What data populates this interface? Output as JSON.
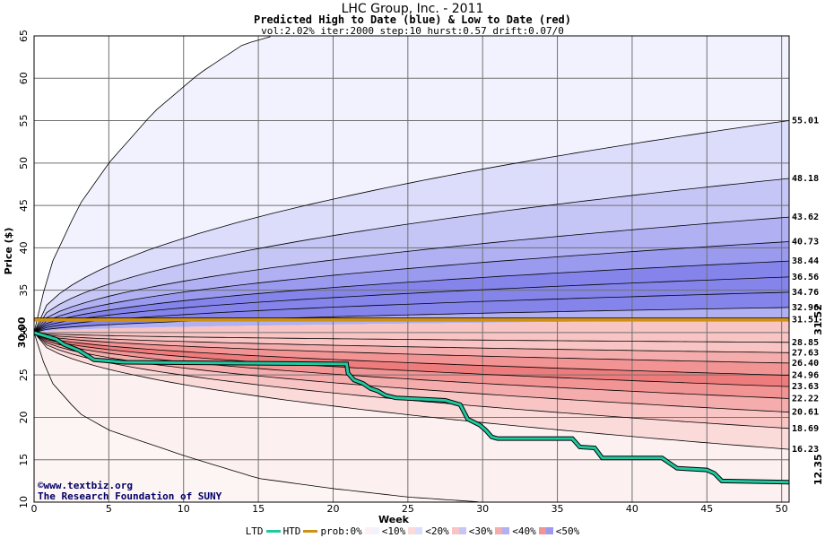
{
  "header": {
    "title": "LHC Group, Inc. - 2011",
    "subtitle": "Predicted High to Date (blue) &  Low to Date (red)",
    "params": "vol:2.02% iter:2000 step:10 hurst:0.57 drift:0.07/0"
  },
  "credits": {
    "site": "www.textbiz.org",
    "org": "The Research Foundation of SUNY"
  },
  "legend": {
    "ltd": "LTD",
    "htd": "HTD",
    "prob": "prob:0%",
    "items": [
      "<10%",
      "<20%",
      "<30%",
      "<40%",
      "<50%"
    ]
  },
  "colors": {
    "ltd_line": "#20c8a0",
    "price_line": "#d09010",
    "blue_bands": [
      "#f2f2ff",
      "#dcdcfb",
      "#c6c6f6",
      "#b0b0f2",
      "#9a9aee",
      "#8484ea"
    ],
    "red_bands": [
      "#fdf0f0",
      "#fbdada",
      "#f8c4c4",
      "#f5acac",
      "#f29494",
      "#ee7c7c"
    ]
  },
  "chart_data": {
    "type": "area",
    "title": "LHC Group, Inc. - 2011",
    "xlabel": "Week",
    "ylabel": "Price ($)",
    "xlim": [
      0,
      50.5
    ],
    "ylim": [
      10,
      65
    ],
    "x_ticks": [
      0,
      5,
      10,
      15,
      20,
      25,
      30,
      35,
      40,
      45,
      50
    ],
    "y_ticks": [
      10,
      15,
      20,
      25,
      30,
      35,
      40,
      45,
      50,
      55,
      60,
      65
    ],
    "grid": true,
    "start_price": 30.0,
    "start_label": "30.00",
    "current_price": 31.52,
    "current_label": "31.52",
    "last_ltd": 12.35,
    "last_ltd_label": "12.35",
    "outer_high_curve": {
      "x": [
        0,
        1,
        3,
        5,
        8,
        11,
        14,
        16
      ],
      "y": [
        30,
        37.5,
        45,
        50,
        56,
        60.5,
        64,
        65
      ]
    },
    "outer_low_curve": {
      "x": [
        0,
        1,
        3,
        5,
        10,
        15,
        20,
        25,
        30
      ],
      "y": [
        30,
        24.5,
        20.5,
        18.5,
        15.5,
        12.8,
        11.6,
        10.6,
        10
      ]
    },
    "high_levels": [
      {
        "label": "55.01",
        "end": 55.01
      },
      {
        "label": "48.18",
        "end": 48.18
      },
      {
        "label": "43.62",
        "end": 43.62
      },
      {
        "label": "40.73",
        "end": 40.73
      },
      {
        "label": "38.44",
        "end": 38.44
      },
      {
        "label": "36.56",
        "end": 36.56
      },
      {
        "label": "34.76",
        "end": 34.76
      },
      {
        "label": "32.96",
        "end": 32.96
      }
    ],
    "low_levels": [
      {
        "label": "28.85",
        "end": 28.85
      },
      {
        "label": "27.63",
        "end": 27.63
      },
      {
        "label": "26.40",
        "end": 26.4
      },
      {
        "label": "24.96",
        "end": 24.96
      },
      {
        "label": "23.63",
        "end": 23.63
      },
      {
        "label": "22.22",
        "end": 22.22
      },
      {
        "label": "20.61",
        "end": 20.61
      },
      {
        "label": "18.69",
        "end": 18.69
      },
      {
        "label": "16.23",
        "end": 16.23
      }
    ],
    "price_level": {
      "label": "31.51",
      "value": 31.51
    },
    "ltd_series": {
      "name": "LTD",
      "x": [
        0,
        1.5,
        2,
        3,
        4,
        6,
        20.9,
        21,
        21.4,
        22,
        22.5,
        23,
        23.5,
        24.2,
        25.5,
        27.5,
        28.5,
        29,
        29.8,
        30.2,
        30.6,
        31,
        36,
        36.5,
        37.5,
        38,
        42,
        42.5,
        43,
        45,
        45.5,
        46,
        50.5
      ],
      "y": [
        30,
        29.2,
        28.6,
        27.9,
        26.8,
        26.5,
        26.3,
        25.2,
        24.4,
        24.0,
        23.4,
        23.1,
        22.6,
        22.3,
        22.2,
        22.0,
        21.5,
        19.8,
        19.1,
        18.5,
        17.7,
        17.5,
        17.5,
        16.5,
        16.4,
        15.2,
        15.2,
        14.6,
        14.0,
        13.8,
        13.4,
        12.5,
        12.35
      ]
    }
  }
}
